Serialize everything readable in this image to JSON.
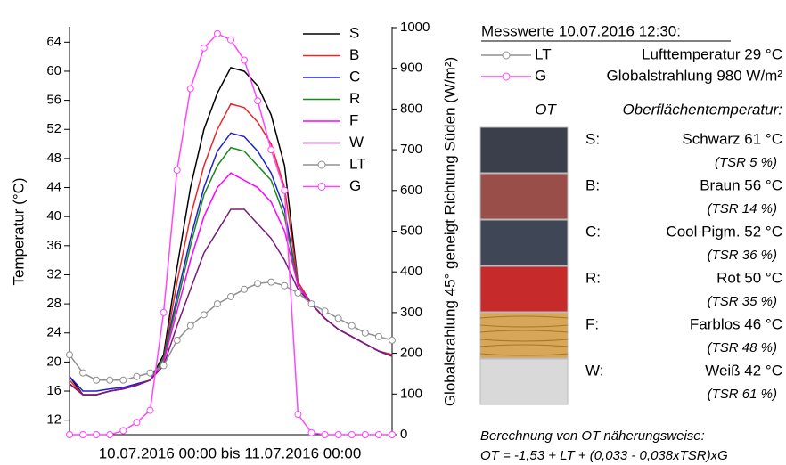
{
  "chart_data": {
    "type": "line",
    "xlabel": "10.07.2016 00:00 bis 11.07.2016 00:00",
    "ylabel": "Temperatur (°C)",
    "y2label": "Globalstrahlung 45° geneigt Richtung Süden (W/m²)",
    "x": [
      0,
      1,
      2,
      3,
      4,
      5,
      6,
      7,
      8,
      9,
      10,
      11,
      12,
      13,
      14,
      15,
      16,
      17,
      18,
      19,
      20,
      21,
      22,
      23,
      24
    ],
    "xlim": [
      0,
      24
    ],
    "ylim": [
      10,
      66
    ],
    "yticks": [
      12,
      16,
      20,
      24,
      28,
      32,
      36,
      40,
      44,
      48,
      52,
      56,
      60,
      64
    ],
    "y2lim": [
      0,
      1000
    ],
    "y2ticks": [
      0,
      100,
      200,
      300,
      400,
      500,
      600,
      700,
      800,
      900,
      1000
    ],
    "series": [
      {
        "name": "S",
        "color": "#000000",
        "values": [
          18,
          15.5,
          15.5,
          16,
          16.3,
          16.8,
          17.5,
          21,
          33,
          44,
          52,
          57,
          60.5,
          60,
          58,
          54,
          47,
          31,
          28,
          26,
          24.5,
          23.5,
          22.5,
          21.5,
          21
        ]
      },
      {
        "name": "B",
        "color": "#e82828",
        "values": [
          17.5,
          15.5,
          15.5,
          16,
          16.3,
          16.8,
          17.5,
          20.5,
          31,
          40,
          47,
          52,
          55.5,
          55,
          53,
          50,
          44,
          31,
          28,
          26,
          24.5,
          23.5,
          22.5,
          21.5,
          21
        ]
      },
      {
        "name": "C",
        "color": "#2020d0",
        "values": [
          18,
          16,
          16,
          16.3,
          16.5,
          17,
          17.5,
          20.5,
          29,
          37,
          44,
          49,
          51.5,
          51,
          49,
          46,
          41,
          30.5,
          28,
          26,
          24.5,
          23.5,
          22.5,
          21.5,
          20.8
        ]
      },
      {
        "name": "R",
        "color": "#1a8a1a",
        "values": [
          17,
          15.5,
          15.5,
          16,
          16.3,
          16.8,
          17.5,
          20.5,
          28,
          36,
          43,
          47,
          49.5,
          49,
          47,
          45,
          40,
          30.5,
          28,
          26,
          24.5,
          23.5,
          22.5,
          21.5,
          20.8
        ]
      },
      {
        "name": "F",
        "color": "#ff00ff",
        "values": [
          17,
          15.5,
          15.5,
          16,
          16.3,
          16.8,
          17.5,
          20,
          27,
          34,
          40,
          44,
          46,
          45,
          44,
          42,
          38,
          30.5,
          28,
          26,
          24.5,
          23.5,
          22.5,
          21.5,
          20.8
        ]
      },
      {
        "name": "W",
        "color": "#7a1a7a",
        "values": [
          17,
          15.5,
          15.5,
          16,
          16.3,
          16.8,
          17.5,
          19.5,
          25,
          30,
          35,
          38,
          41,
          41,
          39,
          37,
          34,
          30,
          28,
          26,
          24.5,
          23.5,
          22.5,
          21.5,
          20.8
        ]
      },
      {
        "name": "LT",
        "color": "#909090",
        "marker": "circle",
        "values": [
          21,
          18.5,
          17.5,
          17.5,
          17.5,
          18,
          18.5,
          19.5,
          23,
          25,
          26.5,
          28,
          29,
          30,
          30.8,
          31,
          30.5,
          29.5,
          28,
          27,
          26,
          25,
          24,
          23.5,
          23
        ]
      },
      {
        "name": "G",
        "color": "#ff44ff",
        "marker": "circle",
        "axis": "y2",
        "values": [
          0,
          0,
          0,
          0,
          10,
          30,
          60,
          300,
          650,
          850,
          950,
          985,
          970,
          920,
          820,
          700,
          600,
          50,
          5,
          0,
          0,
          0,
          0,
          0,
          0
        ]
      }
    ]
  },
  "panel": {
    "title": "Messwerte 10.07.2016 12:30:",
    "legend": [
      "Lufttemperatur 29 °C",
      "Globalstrahlung 980 W/m²"
    ],
    "ot_header": "OT",
    "surface_header": "Oberflächentemperatur:",
    "rows": [
      {
        "key": "S:",
        "text": "Schwarz 61 °C",
        "tsr": "(TSR 5 %)",
        "color": "#3a3f4b"
      },
      {
        "key": "B:",
        "text": "Braun 56 °C",
        "tsr": "(TSR 14 %)",
        "color": "#9a4e4a"
      },
      {
        "key": "C:",
        "text": "Cool Pigm. 52 °C",
        "tsr": "(TSR 36 %)",
        "color": "#3f4756"
      },
      {
        "key": "R:",
        "text": "Rot 50 °C",
        "tsr": "(TSR 35 %)",
        "color": "#c62a2a"
      },
      {
        "key": "F:",
        "text": "Farblos 46 °C",
        "tsr": "(TSR 48 %)",
        "color": "#d7a656"
      },
      {
        "key": "W:",
        "text": "Weiß 42 °C",
        "tsr": "(TSR 61 %)",
        "color": "#d9d9d9"
      }
    ],
    "note": [
      "Berechnung von OT näherungsweise:",
      "OT = -1,53 + LT + (0,033 - 0,038xTSR)xG"
    ]
  }
}
